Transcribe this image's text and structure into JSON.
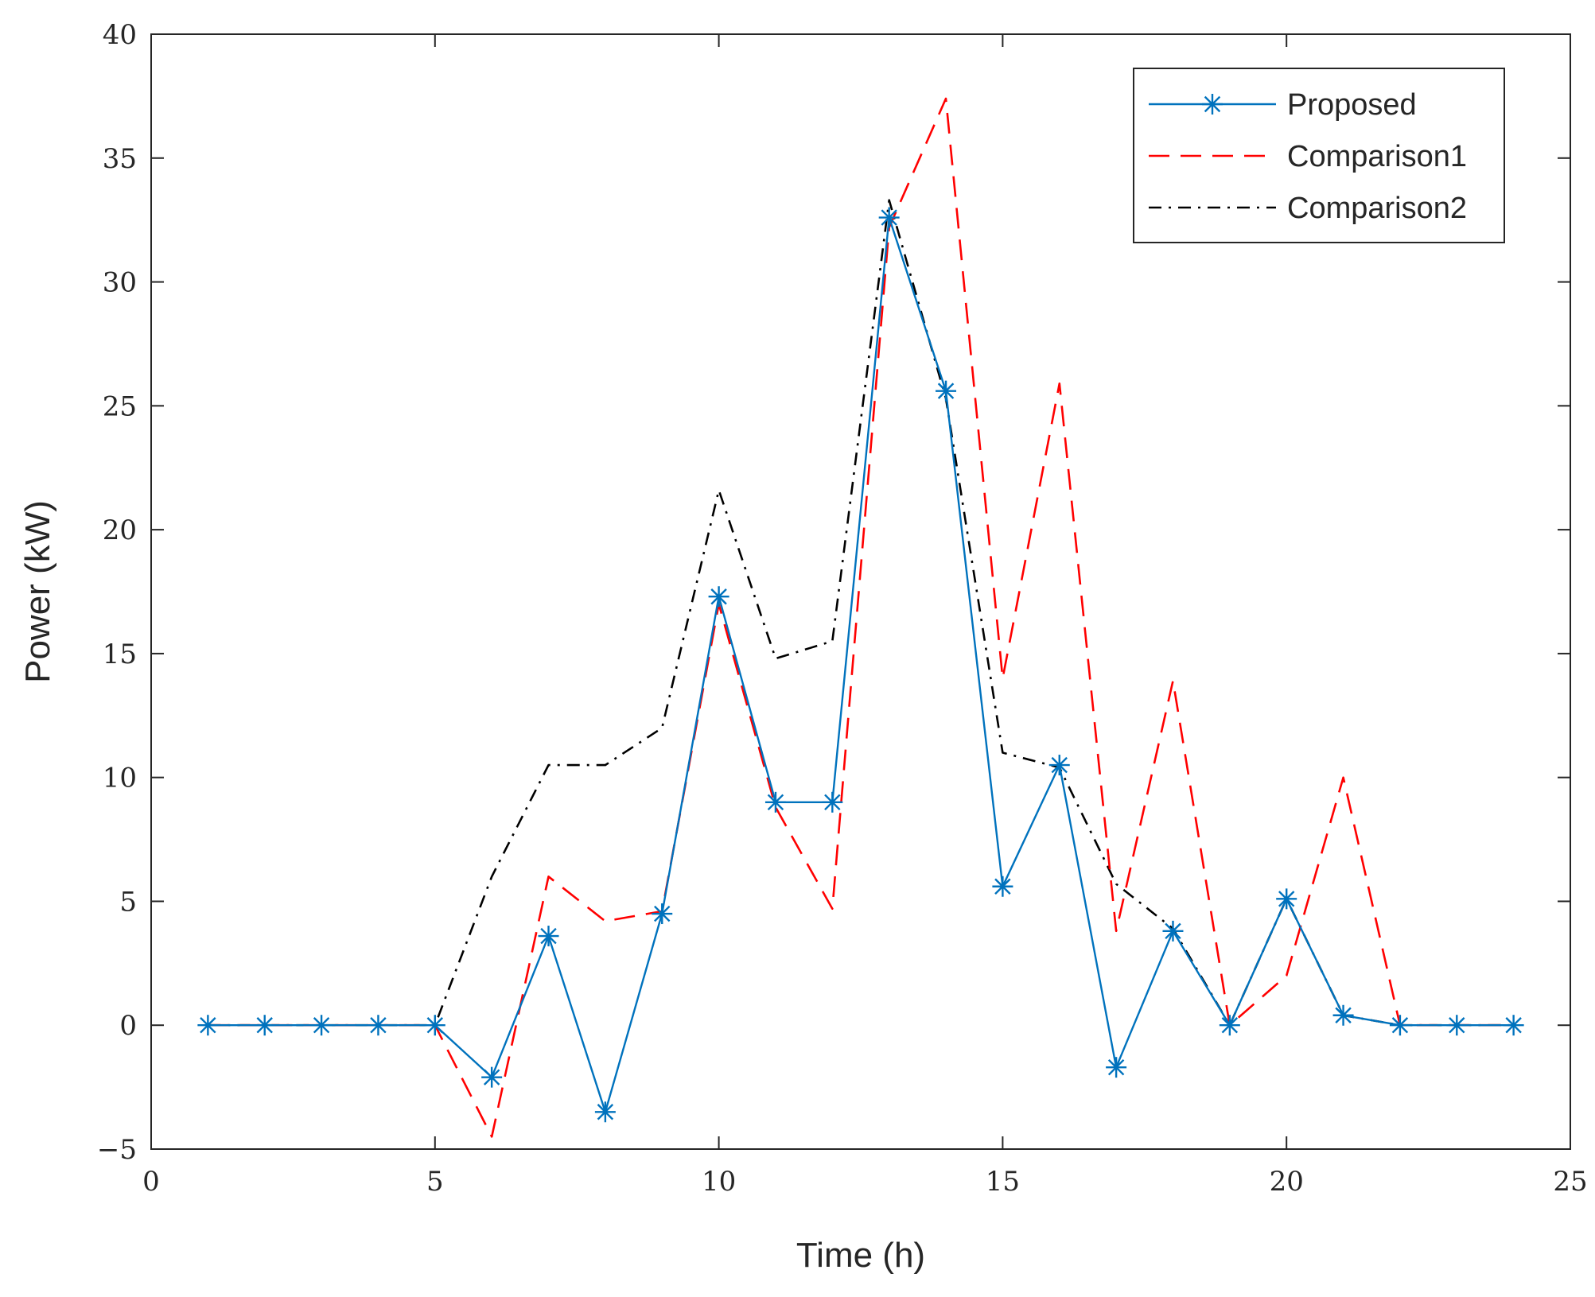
{
  "chart_data": {
    "type": "line",
    "title": "",
    "xlabel": "Time (h)",
    "ylabel": "Power (kW)",
    "xlim": [
      0,
      25
    ],
    "ylim": [
      -5,
      40
    ],
    "xticks": [
      0,
      5,
      10,
      15,
      20,
      25
    ],
    "yticks": [
      -5,
      0,
      5,
      10,
      15,
      20,
      25,
      30,
      35,
      40
    ],
    "ytick_labels": [
      "−5",
      "0",
      "5",
      "10",
      "15",
      "20",
      "25",
      "30",
      "35",
      "40"
    ],
    "grid": false,
    "legend_position": "top-right",
    "x": [
      1,
      2,
      3,
      4,
      5,
      6,
      7,
      8,
      9,
      10,
      11,
      12,
      13,
      14,
      15,
      16,
      17,
      18,
      19,
      20,
      21,
      22,
      23,
      24
    ],
    "series": [
      {
        "name": "Proposed",
        "color": "#0072BD",
        "style": "solid-star",
        "values": [
          0,
          0,
          0,
          0,
          0,
          -2.1,
          3.6,
          -3.5,
          4.5,
          17.3,
          9.0,
          9.0,
          32.6,
          25.6,
          5.6,
          10.5,
          -1.7,
          3.8,
          0,
          5.1,
          0.4,
          0,
          0,
          0
        ]
      },
      {
        "name": "Comparison1",
        "color": "#FF0000",
        "style": "dashed",
        "values": [
          0,
          0,
          0,
          0,
          0,
          -4.5,
          6.0,
          4.2,
          4.6,
          17.0,
          8.8,
          4.7,
          32.2,
          37.4,
          14.0,
          25.9,
          3.8,
          13.9,
          0,
          2.0,
          10.0,
          0,
          0,
          0
        ]
      },
      {
        "name": "Comparison2",
        "color": "#000000",
        "style": "dashdot",
        "values": [
          0,
          0,
          0,
          0,
          0,
          6.0,
          10.5,
          10.5,
          12.0,
          21.6,
          14.8,
          15.5,
          33.3,
          25.3,
          11.0,
          10.4,
          5.7,
          3.9,
          0,
          5.1,
          0.4,
          0,
          0,
          0
        ]
      }
    ]
  }
}
